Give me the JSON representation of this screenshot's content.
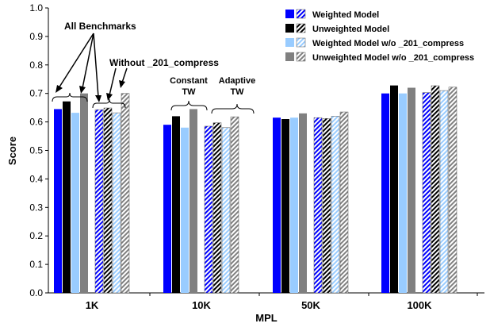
{
  "chart_data": {
    "type": "bar",
    "xlabel": "MPL",
    "ylabel": "Score",
    "ylim": [
      0,
      1.0
    ],
    "yticks": [
      "0.0",
      "0.1",
      "0.2",
      "0.3",
      "0.4",
      "0.5",
      "0.6",
      "0.7",
      "0.8",
      "0.9",
      "1.0"
    ],
    "categories": [
      "1K",
      "10K",
      "50K",
      "100K"
    ],
    "grid": false,
    "legend_position": "top-right",
    "series_colors": {
      "weighted": "#0000ff",
      "unweighted": "#000000",
      "weighted_wo": "#99ccff",
      "unweighted_wo": "#808080"
    },
    "series": [
      {
        "name": "Weighted Model",
        "style": "solid",
        "group": "Constant TW",
        "values": [
          0.645,
          0.59,
          0.615,
          0.7
        ]
      },
      {
        "name": "Unweighted Model",
        "style": "solid",
        "group": "Constant TW",
        "values": [
          0.672,
          0.62,
          0.61,
          0.728
        ]
      },
      {
        "name": "Weighted Model w/o _201_compress",
        "style": "solid",
        "group": "Constant TW",
        "values": [
          0.632,
          0.58,
          0.615,
          0.7
        ]
      },
      {
        "name": "Unweighted Model w/o _201_compress",
        "style": "solid",
        "group": "Constant TW",
        "values": [
          0.7,
          0.645,
          0.63,
          0.72
        ]
      },
      {
        "name": "Weighted Model",
        "style": "hatched",
        "group": "Adaptive TW",
        "values": [
          0.643,
          0.585,
          0.615,
          0.703
        ]
      },
      {
        "name": "Unweighted Model",
        "style": "hatched",
        "group": "Adaptive TW",
        "values": [
          0.649,
          0.597,
          0.612,
          0.727
        ]
      },
      {
        "name": "Weighted Model w/o _201_compress",
        "style": "hatched",
        "group": "Adaptive TW",
        "values": [
          0.632,
          0.58,
          0.62,
          0.71
        ]
      },
      {
        "name": "Unweighted Model w/o _201_compress",
        "style": "hatched",
        "group": "Adaptive TW",
        "values": [
          0.7,
          0.618,
          0.635,
          0.722
        ]
      }
    ],
    "legend": [
      {
        "label": "Weighted Model",
        "key": "weighted"
      },
      {
        "label": "Unweighted Model",
        "key": "unweighted"
      },
      {
        "label": "Weighted Model w/o _201_compress",
        "key": "weighted_wo"
      },
      {
        "label": "Unweighted Model w/o _201_compress",
        "key": "unweighted_wo"
      }
    ],
    "annotations": {
      "all_benchmarks": "All Benchmarks",
      "without_compress": "Without _201_compress",
      "constant_line1": "Constant",
      "constant_line2": "TW",
      "adaptive_line1": "Adaptive",
      "adaptive_line2": "TW"
    }
  }
}
